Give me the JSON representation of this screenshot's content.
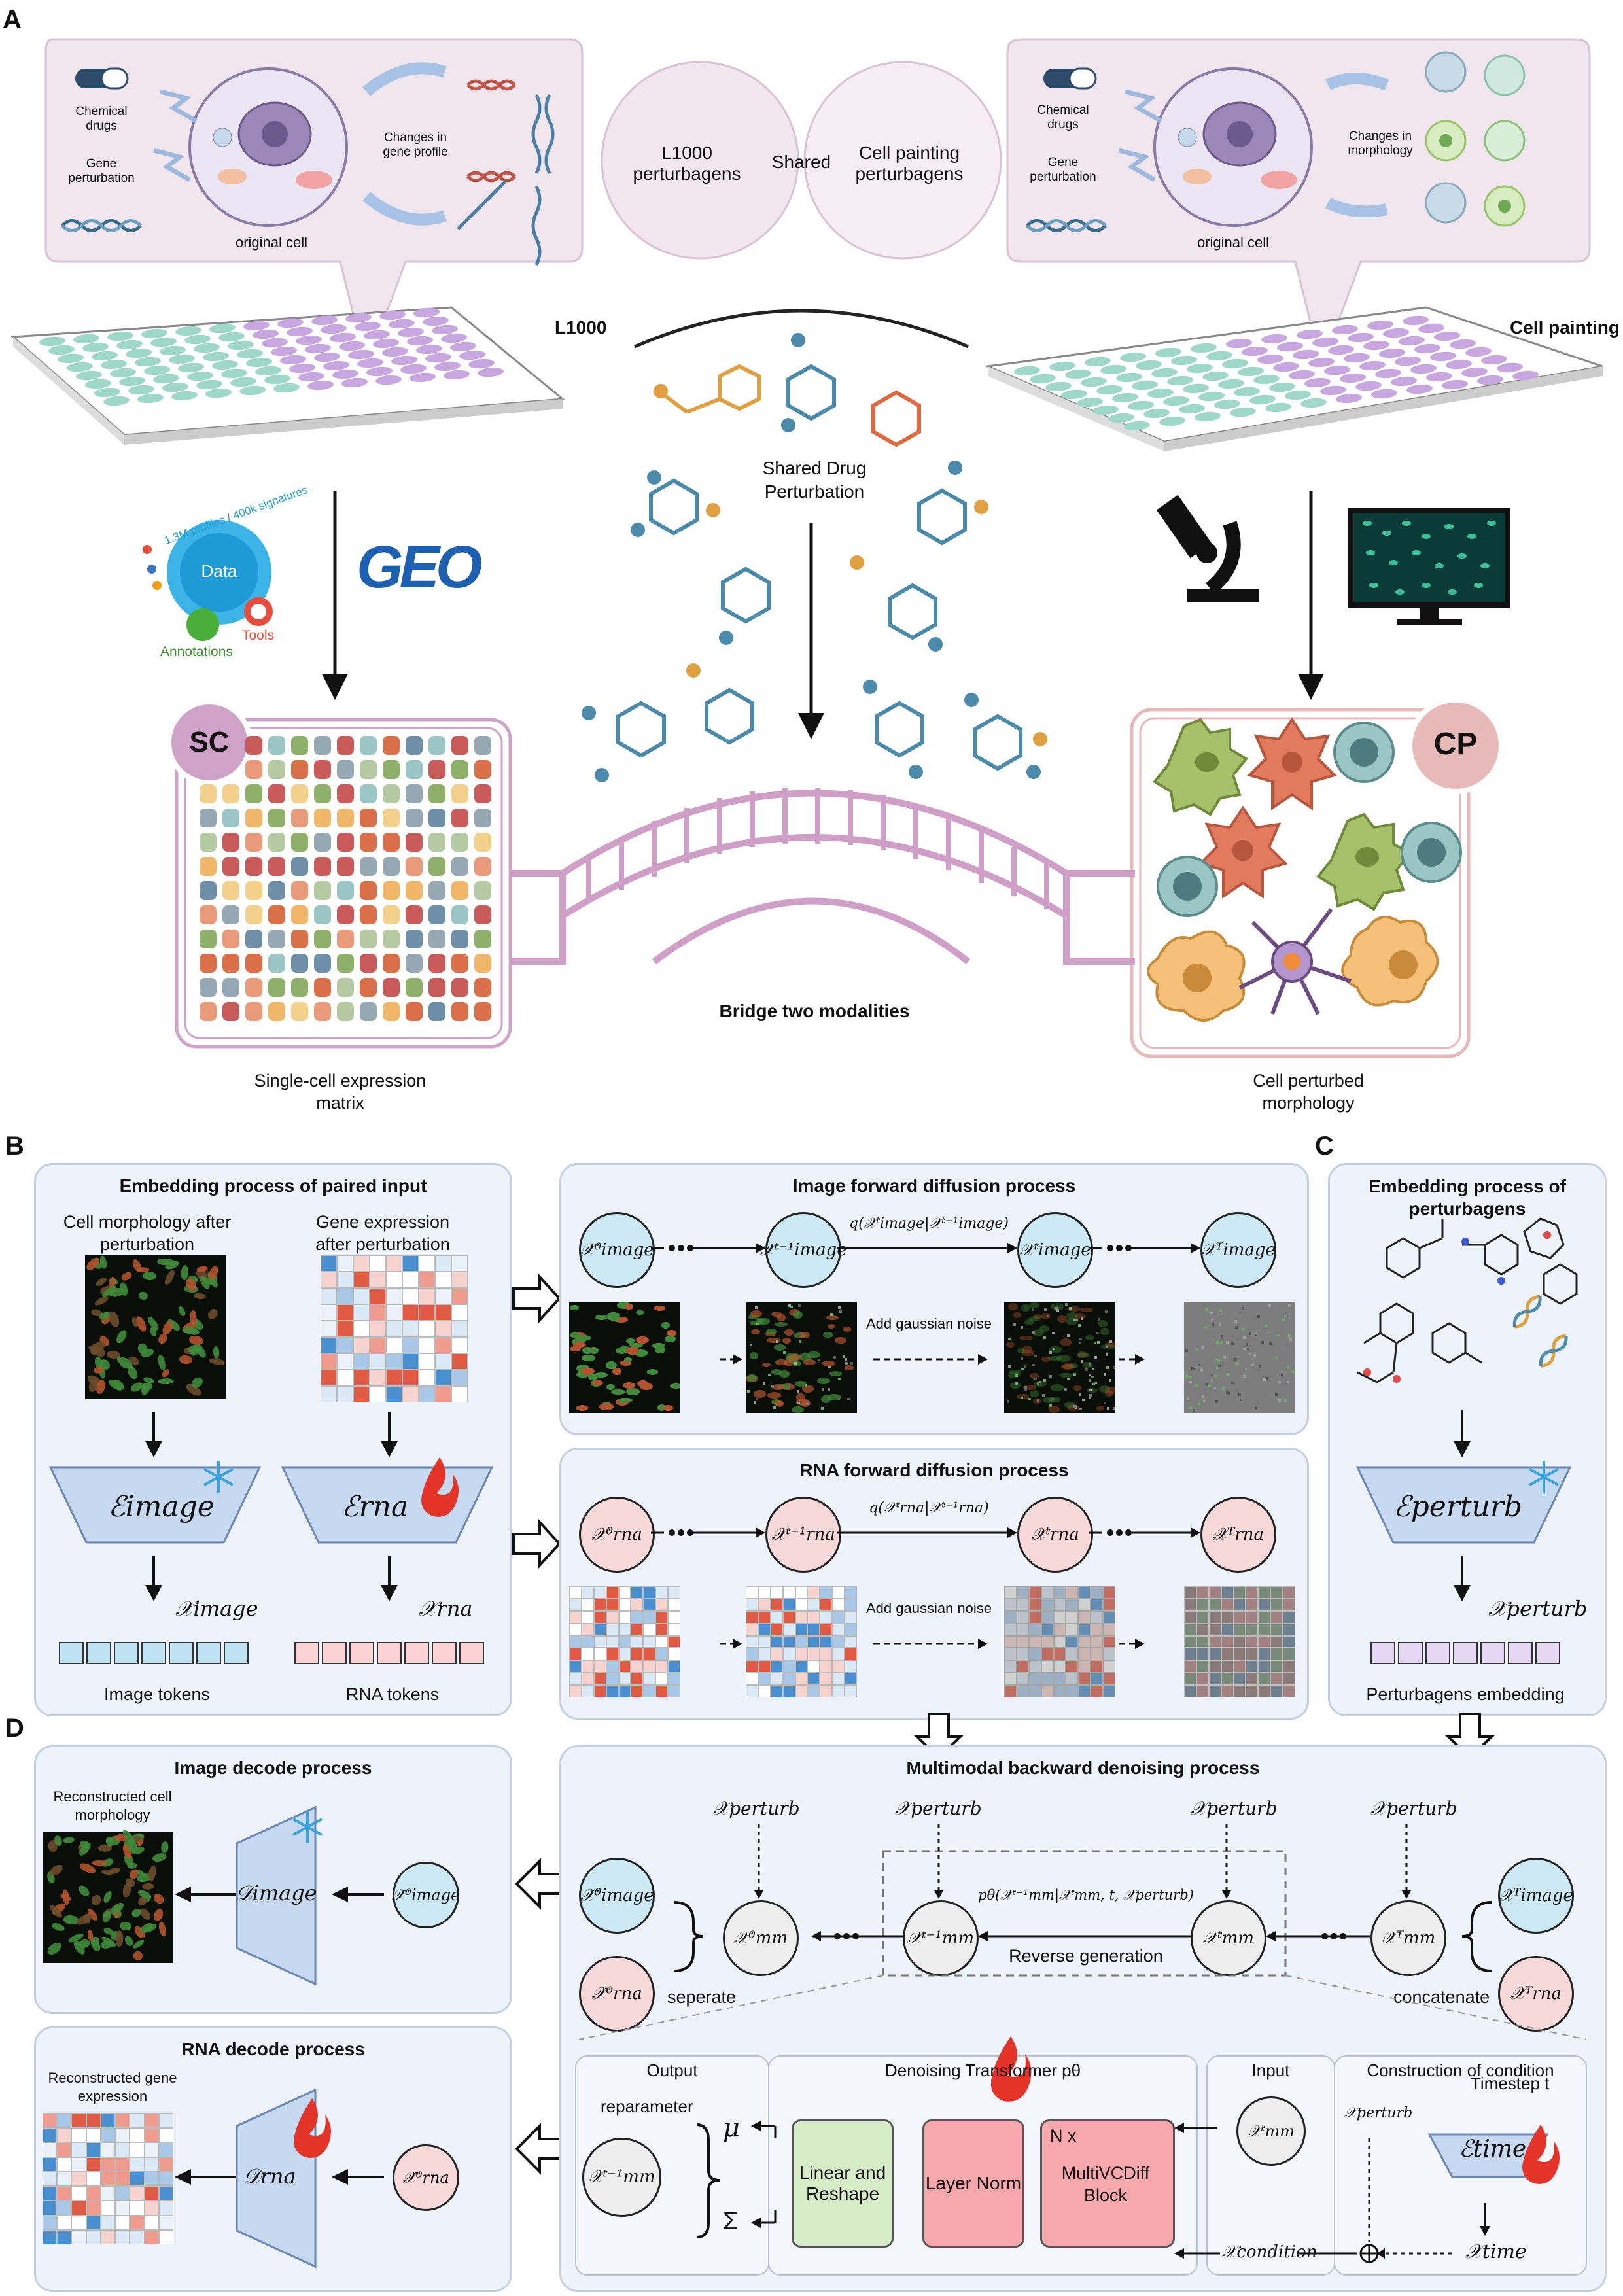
{
  "panel_a": {
    "letter": "A",
    "left_cell": {
      "chemical_drugs": "Chemical drugs",
      "gene_perturbation": "Gene perturbation",
      "original_cell": "original cell",
      "changes": "Changes in gene profile"
    },
    "right_cell": {
      "chemical_drugs": "Chemical drugs",
      "gene_perturbation": "Gene perturbation",
      "original_cell": "original cell",
      "changes": "Changes in morphology"
    },
    "venn": {
      "left": "L1000 perturbagens",
      "middle": "Shared",
      "right": "Cell painting perturbagens"
    },
    "plate_left": "L1000",
    "plate_right": "Cell painting",
    "shared_drug": "Shared Drug  Perturbation",
    "data_hub": {
      "center": "Data",
      "ring": "1.3M profiles / 400k signatures",
      "annotations": "Annotations",
      "tools": "Tools"
    },
    "geo": "GEO",
    "sc_badge": "SC",
    "cp_badge": "CP",
    "bridge_label": "Bridge two modalities",
    "sc_caption": "Single-cell expression matrix",
    "cp_caption": "Cell perturbed morphology"
  },
  "panel_b": {
    "letter": "B",
    "embed_title": "Embedding process of paired input",
    "cell_morph": "Cell morphology after perturbation",
    "gene_expr": "Gene expression after perturbation",
    "enc_image": "ℰimage",
    "enc_rna": "ℰrna",
    "x_image": "𝒳image",
    "x_rna": "𝒳rna",
    "image_tokens": "Image tokens",
    "rna_tokens": "RNA tokens",
    "img_diff_title": "Image forward diffusion process",
    "rna_diff_title": "RNA forward diffusion process",
    "q_image": "q(𝒳ᵗimage|𝒳ᵗ⁻¹image)",
    "q_rna": "q(𝒳ᵗrna|𝒳ᵗ⁻¹rna)",
    "add_noise": "Add gaussian noise",
    "img_states": [
      "𝒳⁰image",
      "𝒳ᵗ⁻¹image",
      "𝒳ᵗimage",
      "𝒳ᵀimage"
    ],
    "rna_states": [
      "𝒳⁰rna",
      "𝒳ᵗ⁻¹rna",
      "𝒳ᵗrna",
      "𝒳ᵀrna"
    ]
  },
  "panel_c": {
    "letter": "C",
    "title": "Embedding process of perturbagens",
    "enc": "ℰperturb",
    "x": "𝒳perturb",
    "caption": "Perturbagens embedding"
  },
  "panel_d": {
    "letter": "D",
    "img_decode_title": "Image decode process",
    "img_recon": "Reconstructed cell morphology",
    "dec_image": "𝒟image",
    "x_hat_image": "𝒳̂⁰image",
    "rna_decode_title": "RNA decode process",
    "rna_recon": "Reconstructed gene expression",
    "dec_rna": "𝒟rna",
    "x_hat_rna": "𝒳̂⁰rna",
    "mm_title": "Multimodal backward denoising process",
    "x_perturb": "𝒳perturb",
    "mm_states": [
      "𝒳⁰mm",
      "𝒳ᵗ⁻¹mm",
      "𝒳ᵗmm",
      "𝒳ᵀmm"
    ],
    "p_theta": "pθ(𝒳ᵗ⁻¹mm|𝒳ᵗmm, t, 𝒳perturb)",
    "reverse": "Reverse generation",
    "seperate": "seperate",
    "concatenate": "concatenate",
    "xt_image": "𝒳ᵀimage",
    "xt_rna": "𝒳ᵀrna",
    "output": "Output",
    "transformer": "Denoising Transformer pθ",
    "input": "Input",
    "condition": "Construction of condition",
    "reparameter": "reparameter",
    "mu": "μ",
    "sigma": "Σ",
    "out_state": "𝒳ᵗ⁻¹mm",
    "linear": "Linear and Reshape",
    "layer_norm": "Layer Norm",
    "nx": "N x",
    "vcdiff": "MultiVCDiff Block",
    "in_state": "𝒳ᵗmm",
    "timestep": "Timestep t",
    "enc_time": "ℰtime",
    "x_time": "𝒳time",
    "x_condition": "𝒳condition",
    "oplus": "⊕"
  },
  "colors": {
    "panel_bg": "#eef2fa",
    "panel_border": "#c5cfe2",
    "blue_node": "#cde9f6",
    "pink_node": "#f8d9da",
    "sc_purple": "#cfa3c9",
    "cp_pink": "#e8b9b9",
    "molecule": "#4b8aaa",
    "molecule_alt": "#e0a042",
    "fire": "#e4342a",
    "snow": "#3aa3de"
  }
}
